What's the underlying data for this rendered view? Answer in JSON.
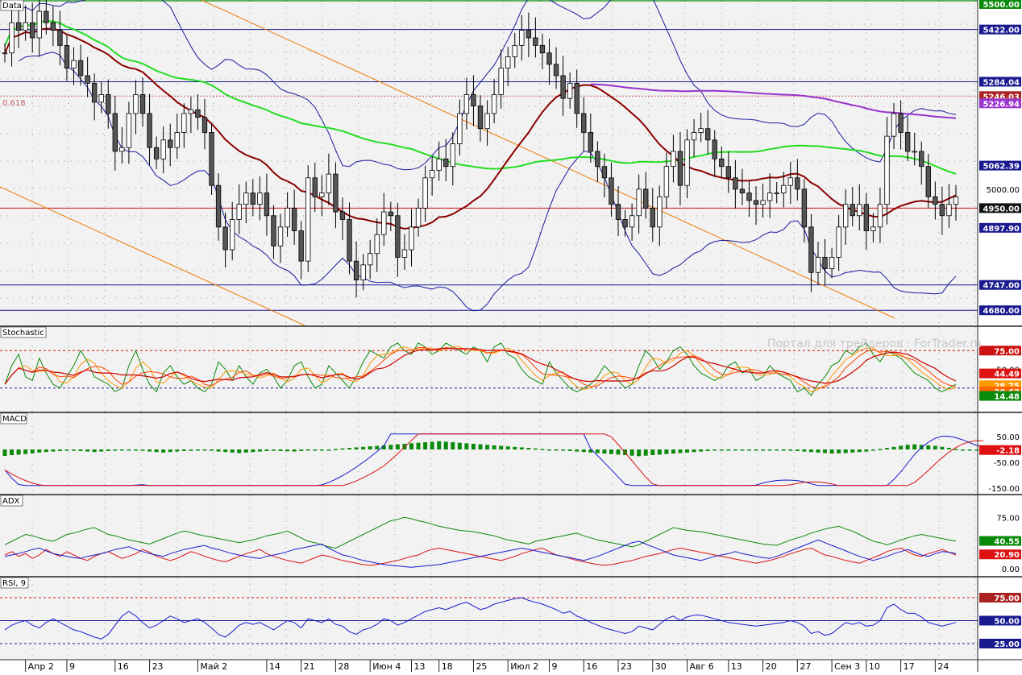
{
  "colors": {
    "background": "#f2f2f2",
    "grid_dots": "#9a9a9a",
    "candle_up": "#ffffff",
    "candle_down": "#555555",
    "sma_dark": "#8b0000",
    "sma_green": "#22dd22",
    "sma_purple": "#9933cc",
    "bollinger": "#1a1aa0",
    "fibo": "#f07800",
    "hline": "#1a1a90",
    "price_line": "#cc1111",
    "stoch_k": "#0a8a0a",
    "stoch_1": "#ff4400",
    "stoch_2": "#ff9900",
    "stoch_3": "#cc0000",
    "macd_hist": "#0a8a0a",
    "macd_line": "#1a1ad0",
    "macd_signal": "#dd1111",
    "adx": "#0a8a0a",
    "plus_di": "#dd1111",
    "minus_di": "#1a1ad0",
    "rsi": "#1a1ad0"
  },
  "panels": {
    "main": {
      "label": "Data",
      "fibo_label": "0.618",
      "watermark": "Портал для трейдеров : ForTrader.ru",
      "price_min": 4640,
      "price_max": 5500,
      "axis_labels": [
        {
          "value": 5500,
          "text": "5500.00",
          "color": "#0a8a0a"
        },
        {
          "value": 5422,
          "text": "5422.00",
          "color": "#1a1a90"
        },
        {
          "value": 5284.04,
          "text": "5284.04",
          "color": "#1a1a90"
        },
        {
          "value": 5246.03,
          "text": "5246.03",
          "color": "#aa2222"
        },
        {
          "value": 5226.94,
          "text": "5226.94",
          "color": "#9933cc"
        },
        {
          "value": 5062.39,
          "text": "5062.39",
          "color": "#1a1a90"
        },
        {
          "value": 5000,
          "text": "5000.00",
          "color": null
        },
        {
          "value": 4950,
          "text": "4950.00",
          "color": "#111111"
        },
        {
          "value": 4897.9,
          "text": "4897.90",
          "color": "#1a1a90"
        },
        {
          "value": 4747,
          "text": "4747.00",
          "color": "#1a1a90"
        },
        {
          "value": 4680,
          "text": "4680.00",
          "color": "#1a1a90"
        }
      ]
    },
    "stochastic": {
      "label": "Stochastic",
      "axis_labels": [
        {
          "value": 75,
          "text": "75.00",
          "color": "#cc1111"
        },
        {
          "value": 50,
          "text": "50.00",
          "color": null
        },
        {
          "value": 44.49,
          "text": "44.49",
          "color": "#dd1111"
        },
        {
          "value": 28.75,
          "text": "28.75",
          "color": "#ff9900"
        },
        {
          "value": 20.62,
          "text": "20.62",
          "color": "#ff6600"
        },
        {
          "value": 14.48,
          "text": "14.48",
          "color": "#0a8a0a"
        }
      ]
    },
    "macd": {
      "label": "MACD",
      "axis_labels": [
        {
          "value": 50,
          "text": "50.00",
          "color": null
        },
        {
          "value": -2.18,
          "text": "-2.18",
          "color": "#dd1111"
        },
        {
          "value": -50,
          "text": "-50.00",
          "color": null
        },
        {
          "value": -150,
          "text": "-150.00",
          "color": null
        }
      ]
    },
    "adx": {
      "label": "ADX",
      "axis_labels": [
        {
          "value": 75,
          "text": "75.00",
          "color": null
        },
        {
          "value": 40.55,
          "text": "40.55",
          "color": "#0a8a0a"
        },
        {
          "value": 20.9,
          "text": "20.90",
          "color": "#dd1111"
        },
        {
          "value": 0,
          "text": "0.00",
          "color": null
        }
      ]
    },
    "rsi": {
      "label": "RSI, 9",
      "axis_labels": [
        {
          "value": 75,
          "text": "75.00",
          "color": "#aa2222"
        },
        {
          "value": 50,
          "text": "50.00",
          "color": "#1a1a90"
        },
        {
          "value": 25,
          "text": "25.00",
          "color": "#1a1a90"
        }
      ]
    }
  },
  "chart_data": {
    "type": "candlestick",
    "date_labels": [
      {
        "text": "Апр 2",
        "index": 3
      },
      {
        "text": "9",
        "index": 9
      },
      {
        "text": "16",
        "index": 16
      },
      {
        "text": "23",
        "index": 21
      },
      {
        "text": "Май 2",
        "index": 28
      },
      {
        "text": "14",
        "index": 38
      },
      {
        "text": "21",
        "index": 43
      },
      {
        "text": "28",
        "index": 48
      },
      {
        "text": "Июн 4",
        "index": 53
      },
      {
        "text": "13",
        "index": 59
      },
      {
        "text": "18",
        "index": 63
      },
      {
        "text": "25",
        "index": 68
      },
      {
        "text": "Июл 2",
        "index": 73
      },
      {
        "text": "9",
        "index": 79
      },
      {
        "text": "16",
        "index": 84
      },
      {
        "text": "23",
        "index": 89
      },
      {
        "text": "30",
        "index": 94
      },
      {
        "text": "Авг 6",
        "index": 99
      },
      {
        "text": "13",
        "index": 105
      },
      {
        "text": "20",
        "index": 110
      },
      {
        "text": "27",
        "index": 115
      },
      {
        "text": "Сен 3",
        "index": 120
      },
      {
        "text": "10",
        "index": 125
      },
      {
        "text": "17",
        "index": 130
      },
      {
        "text": "24",
        "index": 135
      }
    ],
    "candles_close": [
      5360,
      5440,
      5420,
      5440,
      5400,
      5470,
      5440,
      5420,
      5380,
      5320,
      5340,
      5300,
      5280,
      5230,
      5250,
      5200,
      5100,
      5110,
      5200,
      5250,
      5200,
      5110,
      5080,
      5130,
      5110,
      5150,
      5200,
      5210,
      5190,
      5150,
      5010,
      4900,
      4840,
      4920,
      4960,
      4990,
      4960,
      4990,
      4930,
      4850,
      4900,
      4950,
      4890,
      4810,
      5030,
      4980,
      4990,
      5040,
      4940,
      4920,
      4810,
      4760,
      4800,
      4830,
      4880,
      4940,
      4930,
      4820,
      4840,
      4900,
      4950,
      5030,
      5050,
      5080,
      5060,
      5120,
      5200,
      5250,
      5220,
      5160,
      5200,
      5250,
      5320,
      5350,
      5380,
      5420,
      5400,
      5380,
      5360,
      5330,
      5300,
      5240,
      5280,
      5200,
      5150,
      5100,
      5060,
      5030,
      4960,
      4920,
      4900,
      4930,
      5000,
      4950,
      4900,
      4980,
      5060,
      5100,
      5010,
      5130,
      5150,
      5160,
      5130,
      5080,
      5060,
      5030,
      5000,
      4990,
      4970,
      4960,
      4970,
      4990,
      4990,
      5010,
      5030,
      5000,
      4900,
      4780,
      4820,
      4790,
      4820,
      4900,
      4960,
      4930,
      4960,
      4890,
      4900,
      4960,
      5140,
      5200,
      5150,
      5100,
      5100,
      5060,
      4980,
      4960,
      4930,
      4960,
      4980
    ],
    "stochastic_k": [
      30,
      55,
      70,
      40,
      35,
      65,
      45,
      30,
      25,
      40,
      55,
      75,
      60,
      40,
      35,
      30,
      20,
      25,
      55,
      75,
      50,
      30,
      20,
      45,
      55,
      40,
      30,
      35,
      25,
      20,
      30,
      60,
      50,
      35,
      55,
      40,
      30,
      45,
      50,
      40,
      25,
      35,
      55,
      60,
      40,
      25,
      30,
      55,
      45,
      35,
      25,
      40,
      60,
      75,
      70,
      65,
      80,
      85,
      75,
      70,
      85,
      80,
      70,
      75,
      85,
      80,
      75,
      70,
      80,
      75,
      60,
      80,
      85,
      70,
      65,
      50,
      40,
      35,
      30,
      60,
      45,
      35,
      25,
      20,
      25,
      30,
      40,
      55,
      45,
      35,
      25,
      30,
      55,
      75,
      65,
      50,
      60,
      75,
      80,
      70,
      55,
      45,
      40,
      35,
      40,
      55,
      60,
      45,
      50,
      35,
      40,
      55,
      45,
      40,
      35,
      20,
      25,
      15,
      30,
      40,
      55,
      60,
      75,
      70,
      80,
      85,
      70,
      60,
      75,
      70,
      65,
      55,
      45,
      40,
      35,
      25,
      20,
      25,
      30
    ],
    "macd_histogram": [
      -25,
      -22,
      -20,
      -18,
      -15,
      -12,
      -10,
      -8,
      -6,
      -5,
      -5,
      -6,
      -8,
      -10,
      -8,
      -6,
      -5,
      -4,
      -3,
      -2,
      -5,
      -8,
      -10,
      -12,
      -10,
      -8,
      -6,
      -5,
      -4,
      -3,
      -5,
      -8,
      -10,
      -12,
      -14,
      -12,
      -10,
      -8,
      -6,
      -5,
      -6,
      -7,
      -8,
      -6,
      -4,
      -2,
      -1,
      0,
      2,
      4,
      6,
      8,
      10,
      12,
      14,
      16,
      18,
      20,
      22,
      24,
      26,
      28,
      30,
      32,
      30,
      28,
      26,
      24,
      22,
      20,
      18,
      16,
      14,
      12,
      10,
      8,
      6,
      4,
      2,
      0,
      -2,
      -4,
      -6,
      -8,
      -10,
      -12,
      -14,
      -16,
      -18,
      -20,
      -22,
      -24,
      -26,
      -24,
      -22,
      -20,
      -18,
      -16,
      -14,
      -12,
      -10,
      -8,
      -6,
      -4,
      -2,
      -1,
      0,
      0,
      0,
      0,
      -1,
      -2,
      -3,
      -4,
      -5,
      -6,
      -8,
      -10,
      -12,
      -14,
      -16,
      -15,
      -14,
      -12,
      -10,
      -8,
      -4,
      2,
      6,
      10,
      14,
      18,
      20,
      18,
      16,
      14,
      10,
      6,
      2,
      0,
      -2,
      -2,
      -2
    ],
    "adx": [
      35,
      40,
      45,
      50,
      48,
      45,
      42,
      40,
      45,
      50,
      52,
      55,
      58,
      60,
      55,
      50,
      48,
      45,
      42,
      40,
      38,
      36,
      40,
      44,
      48,
      52,
      55,
      53,
      50,
      48,
      46,
      44,
      42,
      40,
      38,
      40,
      42,
      45,
      48,
      50,
      52,
      55,
      50,
      45,
      40,
      38,
      35,
      32,
      30,
      35,
      40,
      45,
      50,
      55,
      60,
      65,
      70,
      72,
      75,
      73,
      70,
      68,
      65,
      62,
      60,
      58,
      56,
      55,
      54,
      52,
      50,
      48,
      45,
      42,
      40,
      38,
      36,
      40,
      42,
      44,
      46,
      48,
      50,
      52,
      48,
      45,
      42,
      40,
      38,
      36,
      34,
      32,
      35,
      40,
      45,
      50,
      55,
      60,
      58,
      56,
      55,
      54,
      52,
      50,
      48,
      46,
      44,
      42,
      40,
      38,
      36,
      35,
      34,
      38,
      42,
      45,
      48,
      52,
      55,
      58,
      60,
      62,
      58,
      55,
      50,
      45,
      40,
      38,
      35,
      38,
      42,
      45,
      48,
      50,
      48,
      46,
      44,
      42,
      40
    ],
    "plus_di": [
      20,
      25,
      18,
      22,
      15,
      20,
      28,
      22,
      18,
      25,
      20,
      15,
      12,
      18,
      22,
      25,
      20,
      15,
      18,
      22,
      28,
      24,
      18,
      15,
      12,
      15,
      20,
      25,
      22,
      18,
      15,
      12,
      10,
      14,
      18,
      22,
      25,
      28,
      22,
      18,
      15,
      12,
      10,
      8,
      12,
      16,
      20,
      18,
      15,
      12,
      10,
      8,
      6,
      5,
      6,
      8,
      10,
      12,
      15,
      18,
      20,
      25,
      28,
      30,
      28,
      26,
      24,
      22,
      20,
      18,
      16,
      14,
      12,
      15,
      18,
      22,
      25,
      28,
      30,
      25,
      20,
      18,
      15,
      12,
      10,
      8,
      6,
      5,
      6,
      8,
      10,
      12,
      15,
      18,
      20,
      22,
      25,
      28,
      30,
      28,
      26,
      24,
      22,
      20,
      18,
      16,
      14,
      12,
      10,
      8,
      10,
      12,
      15,
      18,
      22,
      25,
      28,
      30,
      25,
      20,
      18,
      15,
      12,
      10,
      8,
      12,
      16,
      20,
      25,
      28,
      30,
      25,
      20,
      18,
      22,
      25,
      28,
      24,
      20
    ],
    "minus_di": [
      18,
      20,
      22,
      25,
      28,
      30,
      26,
      22,
      20,
      18,
      16,
      15,
      18,
      20,
      22,
      25,
      28,
      30,
      32,
      28,
      25,
      22,
      20,
      18,
      22,
      25,
      28,
      30,
      32,
      34,
      30,
      28,
      25,
      22,
      20,
      18,
      16,
      15,
      18,
      20,
      22,
      25,
      28,
      30,
      32,
      34,
      36,
      30,
      25,
      20,
      18,
      15,
      12,
      10,
      8,
      6,
      5,
      4,
      3,
      2,
      3,
      4,
      5,
      6,
      8,
      10,
      12,
      14,
      16,
      18,
      20,
      22,
      24,
      26,
      28,
      30,
      28,
      26,
      24,
      22,
      20,
      18,
      16,
      14,
      12,
      15,
      18,
      22,
      26,
      30,
      34,
      38,
      40,
      36,
      32,
      28,
      24,
      20,
      18,
      16,
      14,
      12,
      15,
      18,
      20,
      22,
      25,
      22,
      20,
      18,
      16,
      15,
      18,
      22,
      26,
      30,
      34,
      38,
      42,
      38,
      34,
      30,
      26,
      22,
      18,
      15,
      12,
      15,
      18,
      22,
      25,
      28,
      24,
      20,
      18,
      22,
      25,
      24,
      22
    ],
    "rsi": [
      40,
      45,
      48,
      50,
      45,
      42,
      48,
      52,
      48,
      44,
      40,
      38,
      35,
      32,
      30,
      35,
      45,
      55,
      60,
      55,
      48,
      42,
      45,
      50,
      55,
      52,
      48,
      50,
      52,
      48,
      42,
      35,
      32,
      38,
      45,
      48,
      46,
      48,
      44,
      40,
      45,
      50,
      48,
      42,
      52,
      50,
      48,
      52,
      46,
      44,
      38,
      35,
      40,
      42,
      46,
      52,
      50,
      45,
      48,
      52,
      56,
      60,
      62,
      64,
      62,
      65,
      68,
      70,
      66,
      62,
      64,
      68,
      70,
      72,
      74,
      75,
      72,
      70,
      68,
      65,
      62,
      58,
      60,
      55,
      52,
      48,
      45,
      42,
      40,
      38,
      36,
      38,
      44,
      42,
      40,
      46,
      52,
      55,
      50,
      54,
      56,
      56,
      54,
      52,
      50,
      48,
      47,
      46,
      45,
      44,
      45,
      46,
      47,
      48,
      50,
      48,
      44,
      36,
      38,
      34,
      36,
      42,
      48,
      46,
      48,
      44,
      45,
      50,
      64,
      68,
      62,
      58,
      58,
      54,
      48,
      46,
      44,
      46,
      48
    ]
  }
}
